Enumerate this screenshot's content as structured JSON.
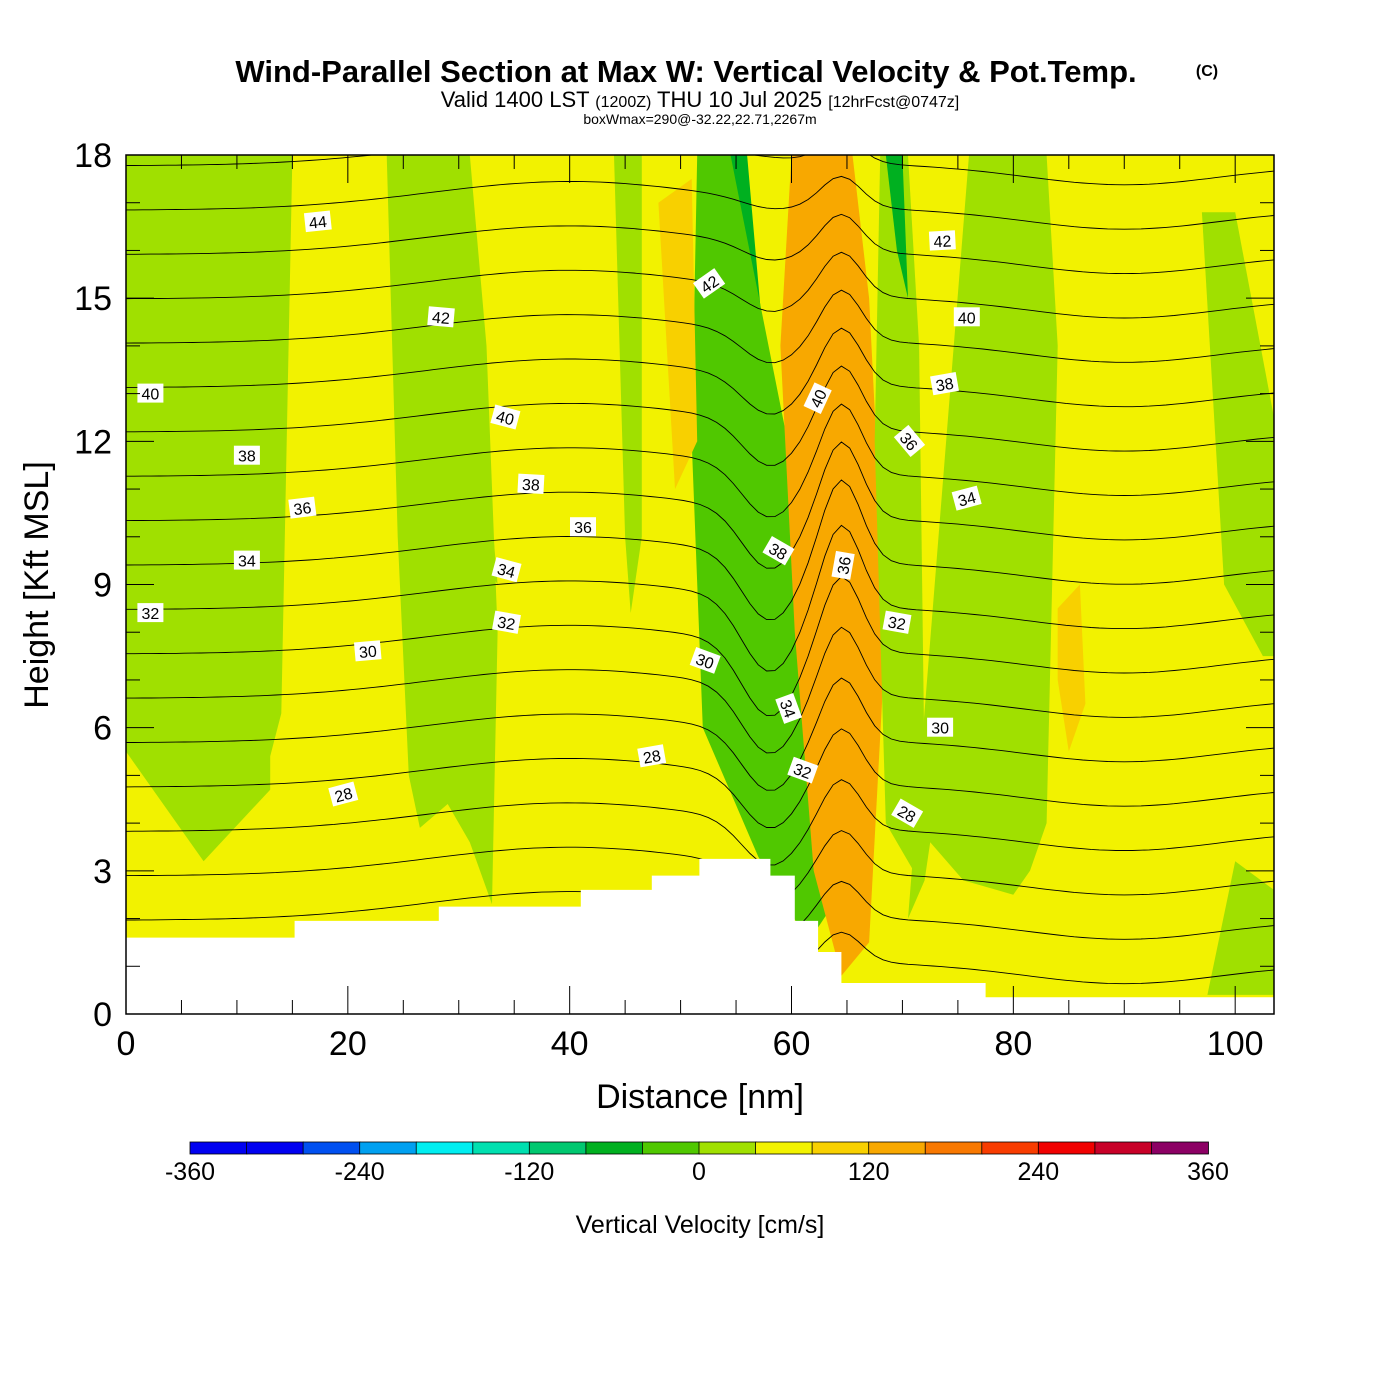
{
  "chart_data": {
    "type": "heatmap",
    "title": {
      "main": "Wind-Parallel Section at Max W: Vertical Velocity & Pot.Temp.",
      "copyright": "(C)",
      "valid_prefix": "Valid 1400 LST",
      "valid_utc": "(1200Z)",
      "valid_date": "THU 10 Jul 2025",
      "forecast": "[12hrFcst@0747z]",
      "subtitle": "boxWmax=290@-32.22,22.71,2267m"
    },
    "xlabel": "Distance [nm]",
    "ylabel": "Height [Kft MSL]",
    "xlim": [
      0,
      103.5
    ],
    "ylim": [
      0,
      18
    ],
    "x_ticks": [
      "0",
      "20",
      "40",
      "60",
      "80",
      "100"
    ],
    "x_tick_values": [
      0,
      20,
      40,
      60,
      80,
      100
    ],
    "y_ticks": [
      "0",
      "3",
      "6",
      "9",
      "12",
      "15",
      "18"
    ],
    "y_tick_values": [
      0,
      3,
      6,
      9,
      12,
      15,
      18
    ],
    "colorbar": {
      "label": "Vertical Velocity [cm/s]",
      "min": -360,
      "max": 360,
      "step": 40,
      "tick_labels": [
        "-360",
        "-240",
        "-120",
        "0",
        "120",
        "240",
        "360"
      ],
      "tick_values": [
        -360,
        -240,
        -120,
        0,
        120,
        240,
        360
      ],
      "colors": [
        "#0000f0",
        "#0050f0",
        "#00a0f0",
        "#00eef0",
        "#00e0b0",
        "#00c870",
        "#00b020",
        "#50c800",
        "#a0e000",
        "#f2f200",
        "#f8d000",
        "#f8a800",
        "#f87800",
        "#f83c00",
        "#f00000",
        "#c80028",
        "#8c0064"
      ]
    },
    "terrain_kft": [
      [
        0,
        1.6
      ],
      [
        15.2,
        1.6
      ],
      [
        15.2,
        1.95
      ],
      [
        28.2,
        1.95
      ],
      [
        28.2,
        2.25
      ],
      [
        41,
        2.25
      ],
      [
        41,
        2.6
      ],
      [
        47.4,
        2.6
      ],
      [
        47.4,
        2.9
      ],
      [
        51.7,
        2.9
      ],
      [
        51.7,
        3.25
      ],
      [
        58.1,
        3.25
      ],
      [
        58.1,
        2.9
      ],
      [
        60.3,
        2.9
      ],
      [
        60.3,
        1.95
      ],
      [
        62.4,
        1.95
      ],
      [
        62.4,
        1.3
      ],
      [
        64.5,
        1.3
      ],
      [
        64.5,
        0.65
      ],
      [
        77.5,
        0.65
      ],
      [
        77.5,
        0.35
      ],
      [
        103.5,
        0.35
      ]
    ],
    "velocity_regions": [
      {
        "name": "left-weak-updraft",
        "value": -20,
        "x": [
          0,
          0,
          7,
          13,
          13,
          14,
          15,
          5,
          0
        ],
        "y": [
          18,
          5.5,
          3.2,
          4.7,
          5.4,
          6.3,
          18,
          18,
          18
        ]
      },
      {
        "name": "band-20-30",
        "value": -20,
        "x": [
          23.5,
          24.5,
          25.5,
          26.5,
          29,
          31,
          33,
          33.5,
          32.5,
          31
        ],
        "y": [
          18,
          10,
          5,
          3.9,
          4.4,
          3.6,
          2.3,
          8,
          14,
          18
        ]
      },
      {
        "name": "band-33",
        "value": -40,
        "x": [
          32.2,
          33.5,
          32.2
        ],
        "y": [
          12.5,
          9,
          9.5
        ]
      },
      {
        "name": "band-45-50",
        "value": -20,
        "x": [
          44,
          45,
          45.5,
          46.5,
          46.5,
          45
        ],
        "y": [
          18,
          10,
          8.4,
          10,
          18,
          18
        ]
      },
      {
        "name": "downdraft-core",
        "value": -200,
        "x": [
          53,
          56.5,
          59,
          60,
          59.5,
          57.5,
          55.5
        ],
        "y": [
          11,
          9,
          6.5,
          3.2,
          3,
          3.5,
          7
        ]
      },
      {
        "name": "downdraft-outer",
        "value": -120,
        "x": [
          54.5,
          56,
          57.5,
          60,
          62,
          61,
          58.5,
          54,
          52
        ],
        "y": [
          18,
          18,
          14,
          10,
          3,
          2.5,
          3,
          7,
          12
        ]
      },
      {
        "name": "downdraft-edge",
        "value": -60,
        "x": [
          51.5,
          54.5,
          60.5,
          62.5,
          63.5,
          61.5,
          57,
          52,
          51
        ],
        "y": [
          18,
          18,
          11,
          5,
          2.2,
          1.5,
          3.3,
          6,
          12
        ]
      },
      {
        "name": "updraft-core",
        "value": 300,
        "x": [
          63.5,
          65.5,
          66,
          65.5,
          64.5,
          63,
          62.5,
          61.5
        ],
        "y": [
          18,
          15,
          11,
          6,
          3.5,
          4.5,
          8,
          13
        ]
      },
      {
        "name": "updraft-mid",
        "value": 200,
        "x": [
          62,
          65,
          67,
          67.5,
          66,
          64.5,
          62,
          60.5,
          60
        ],
        "y": [
          18,
          18,
          14,
          8,
          2.5,
          1.5,
          4,
          9,
          15
        ]
      },
      {
        "name": "updraft-outer",
        "value": 80,
        "x": [
          60,
          63,
          65.5,
          67,
          68.5,
          67,
          64.5,
          62,
          60.3,
          59
        ],
        "y": [
          18,
          18,
          18,
          15,
          8,
          1.5,
          0.8,
          3,
          8,
          14
        ]
      },
      {
        "name": "right-green-1",
        "value": -40,
        "x": [
          68,
          70.5,
          71.5,
          72,
          71,
          68.5,
          67.5
        ],
        "y": [
          18,
          18,
          14,
          5,
          3,
          4,
          12
        ]
      },
      {
        "name": "right-cyan",
        "value": -100,
        "x": [
          68.5,
          70,
          70.5,
          69.5
        ],
        "y": [
          18,
          18,
          15,
          16
        ]
      },
      {
        "name": "right-green-2",
        "value": -40,
        "x": [
          77.5,
          80.5,
          81.5,
          80.5,
          79.5,
          78.5
        ],
        "y": [
          18,
          18,
          14,
          10,
          7.5,
          12
        ]
      },
      {
        "name": "right-green-3",
        "value": -20,
        "x": [
          76,
          83,
          84,
          83,
          81.5,
          80,
          75.5,
          72.5,
          72,
          70.5
        ],
        "y": [
          18,
          18,
          14,
          4,
          3,
          2.5,
          2.8,
          3.6,
          2.8,
          2
        ]
      },
      {
        "name": "right-lower-yellow",
        "value": 10,
        "x": [
          85,
          88,
          90,
          95,
          98
        ],
        "y": [
          1.5,
          0.6,
          2.5,
          1.5,
          0.4
        ]
      },
      {
        "name": "far-right-green",
        "value": -20,
        "x": [
          97,
          100,
          103.5,
          103.5,
          102.5,
          99
        ],
        "y": [
          16.8,
          16.8,
          12.5,
          7.5,
          7.5,
          9
        ]
      },
      {
        "name": "far-right-lower",
        "value": -20,
        "x": [
          97.5,
          100,
          103.5,
          103.5,
          99
        ],
        "y": [
          0.4,
          3.2,
          2.6,
          0.4,
          0.4
        ]
      },
      {
        "name": "orange-pocket",
        "value": 60,
        "x": [
          84,
          86,
          86.5,
          85,
          84
        ],
        "y": [
          8.5,
          9,
          6.5,
          5.5,
          7
        ]
      },
      {
        "name": "orange-pocket-upper",
        "value": 60,
        "x": [
          48,
          51,
          51.5,
          49.5
        ],
        "y": [
          17,
          17.5,
          12,
          11
        ]
      }
    ],
    "isentrope_labels": [
      {
        "text": "44",
        "x": 17.3,
        "y": 16.6,
        "angle": -6
      },
      {
        "text": "42",
        "x": 28.4,
        "y": 14.6,
        "angle": 5
      },
      {
        "text": "42",
        "x": 52.6,
        "y": 15.3,
        "angle": -35
      },
      {
        "text": "42",
        "x": 73.6,
        "y": 16.2,
        "angle": -3
      },
      {
        "text": "40",
        "x": 2.2,
        "y": 13.0,
        "angle": 0
      },
      {
        "text": "40",
        "x": 34.2,
        "y": 12.5,
        "angle": 15
      },
      {
        "text": "40",
        "x": 62.4,
        "y": 12.9,
        "angle": -65
      },
      {
        "text": "40",
        "x": 75.8,
        "y": 14.6,
        "angle": 0
      },
      {
        "text": "38",
        "x": 10.9,
        "y": 11.7,
        "angle": 0
      },
      {
        "text": "38",
        "x": 36.5,
        "y": 11.1,
        "angle": 3
      },
      {
        "text": "38",
        "x": 58.8,
        "y": 9.7,
        "angle": 30
      },
      {
        "text": "38",
        "x": 73.8,
        "y": 13.2,
        "angle": -10
      },
      {
        "text": "36",
        "x": 15.9,
        "y": 10.6,
        "angle": -7
      },
      {
        "text": "36",
        "x": 41.2,
        "y": 10.2,
        "angle": 0
      },
      {
        "text": "36",
        "x": 64.7,
        "y": 9.4,
        "angle": -80
      },
      {
        "text": "36",
        "x": 70.6,
        "y": 12.0,
        "angle": 50
      },
      {
        "text": "34",
        "x": 10.9,
        "y": 9.5,
        "angle": 0
      },
      {
        "text": "34",
        "x": 34.3,
        "y": 9.3,
        "angle": 15
      },
      {
        "text": "34",
        "x": 59.7,
        "y": 6.4,
        "angle": 70
      },
      {
        "text": "34",
        "x": 75.8,
        "y": 10.8,
        "angle": -15
      },
      {
        "text": "32",
        "x": 2.2,
        "y": 8.4,
        "angle": 0
      },
      {
        "text": "32",
        "x": 34.3,
        "y": 8.2,
        "angle": 10
      },
      {
        "text": "32",
        "x": 61.0,
        "y": 5.1,
        "angle": 20
      },
      {
        "text": "32",
        "x": 69.5,
        "y": 8.2,
        "angle": 10
      },
      {
        "text": "30",
        "x": 21.8,
        "y": 7.6,
        "angle": -5
      },
      {
        "text": "30",
        "x": 52.2,
        "y": 7.4,
        "angle": 20
      },
      {
        "text": "30",
        "x": 73.4,
        "y": 6.0,
        "angle": 0
      },
      {
        "text": "28",
        "x": 19.6,
        "y": 4.6,
        "angle": -15
      },
      {
        "text": "28",
        "x": 47.4,
        "y": 5.4,
        "angle": -10
      },
      {
        "text": "28",
        "x": 70.4,
        "y": 4.2,
        "angle": 30
      }
    ]
  }
}
